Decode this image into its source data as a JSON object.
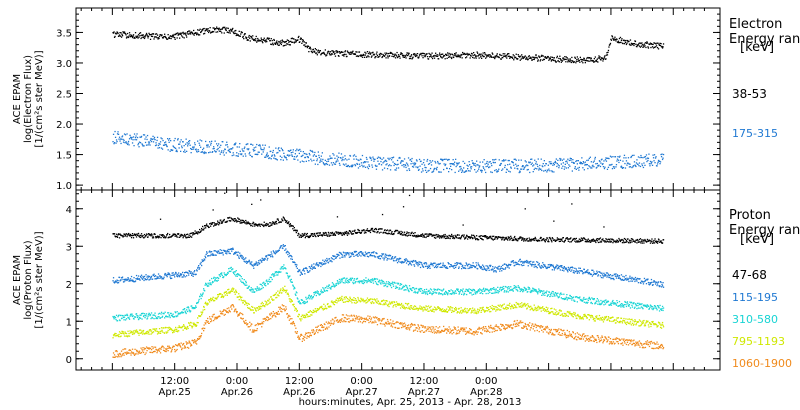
{
  "chart_data": [
    {
      "type": "scatter",
      "panel": "electron",
      "ylabel_lines": [
        "ACE EPAM",
        "log(Electron Flux)",
        "[1/(cm²s ster MeV)]"
      ],
      "yticks": [
        1.0,
        1.5,
        2.0,
        2.5,
        3.0,
        3.5
      ],
      "ylim": [
        0.92,
        3.9
      ],
      "legend_title": [
        "Electron",
        "Energy range",
        "[keV]"
      ],
      "grid": false,
      "series": [
        {
          "name": "38-53",
          "color": "#000000",
          "keypoints": [
            [
              0,
              3.48
            ],
            [
              11,
              3.43
            ],
            [
              19,
              3.55
            ],
            [
              23,
              3.54
            ],
            [
              26,
              3.42
            ],
            [
              33,
              3.33
            ],
            [
              36,
              3.4
            ],
            [
              38,
              3.22
            ],
            [
              40,
              3.18
            ],
            [
              48,
              3.15
            ],
            [
              60,
              3.12
            ],
            [
              70,
              3.14
            ],
            [
              84,
              3.08
            ],
            [
              92,
              3.05
            ],
            [
              95,
              3.1
            ],
            [
              96,
              3.42
            ],
            [
              100,
              3.33
            ],
            [
              106,
              3.28
            ]
          ],
          "noise": 0.05
        },
        {
          "name": "175-315",
          "color": "#1f78d2",
          "keypoints": [
            [
              0,
              1.8
            ],
            [
              10,
              1.68
            ],
            [
              20,
              1.62
            ],
            [
              30,
              1.55
            ],
            [
              40,
              1.45
            ],
            [
              50,
              1.38
            ],
            [
              60,
              1.33
            ],
            [
              72,
              1.32
            ],
            [
              84,
              1.33
            ],
            [
              96,
              1.38
            ],
            [
              106,
              1.42
            ]
          ],
          "noise": 0.11
        }
      ]
    },
    {
      "type": "scatter",
      "panel": "proton",
      "ylabel_lines": [
        "ACE EPAM",
        "log(Proton Flux)",
        "[1/(cm²s ster MeV)]"
      ],
      "yticks": [
        0,
        1,
        2,
        3,
        4
      ],
      "ylim": [
        -0.3,
        4.5
      ],
      "legend_title": [
        "Proton",
        "Energy range",
        "[keV]"
      ],
      "grid": false,
      "series": [
        {
          "name": "47-68",
          "color": "#000000",
          "keypoints": [
            [
              0,
              3.3
            ],
            [
              15,
              3.3
            ],
            [
              18,
              3.55
            ],
            [
              23,
              3.75
            ],
            [
              27,
              3.6
            ],
            [
              30,
              3.6
            ],
            [
              33,
              3.75
            ],
            [
              36,
              3.3
            ],
            [
              44,
              3.35
            ],
            [
              50,
              3.45
            ],
            [
              60,
              3.3
            ],
            [
              70,
              3.25
            ],
            [
              82,
              3.2
            ],
            [
              106,
              3.15
            ]
          ],
          "noise": 0.06
        },
        {
          "name": "115-195",
          "color": "#1f78d2",
          "keypoints": [
            [
              0,
              2.1
            ],
            [
              12,
              2.25
            ],
            [
              16,
              2.3
            ],
            [
              18,
              2.8
            ],
            [
              23,
              2.9
            ],
            [
              27,
              2.5
            ],
            [
              30,
              2.75
            ],
            [
              33,
              3.0
            ],
            [
              36,
              2.3
            ],
            [
              44,
              2.8
            ],
            [
              50,
              2.8
            ],
            [
              60,
              2.5
            ],
            [
              70,
              2.5
            ],
            [
              74,
              2.4
            ],
            [
              78,
              2.6
            ],
            [
              90,
              2.35
            ],
            [
              106,
              2.0
            ]
          ],
          "noise": 0.08
        },
        {
          "name": "310-580",
          "color": "#18d4d4",
          "keypoints": [
            [
              0,
              1.1
            ],
            [
              12,
              1.2
            ],
            [
              16,
              1.4
            ],
            [
              18,
              2.0
            ],
            [
              23,
              2.4
            ],
            [
              27,
              1.8
            ],
            [
              30,
              2.1
            ],
            [
              33,
              2.5
            ],
            [
              36,
              1.5
            ],
            [
              44,
              2.1
            ],
            [
              50,
              2.1
            ],
            [
              60,
              1.8
            ],
            [
              70,
              1.8
            ],
            [
              78,
              1.9
            ],
            [
              90,
              1.6
            ],
            [
              106,
              1.35
            ]
          ],
          "noise": 0.08
        },
        {
          "name": "795-1193",
          "color": "#cfe800",
          "keypoints": [
            [
              0,
              0.65
            ],
            [
              12,
              0.8
            ],
            [
              16,
              0.95
            ],
            [
              18,
              1.5
            ],
            [
              23,
              1.85
            ],
            [
              27,
              1.3
            ],
            [
              30,
              1.55
            ],
            [
              33,
              1.9
            ],
            [
              36,
              1.1
            ],
            [
              44,
              1.6
            ],
            [
              50,
              1.55
            ],
            [
              60,
              1.35
            ],
            [
              70,
              1.3
            ],
            [
              78,
              1.45
            ],
            [
              90,
              1.15
            ],
            [
              106,
              0.9
            ]
          ],
          "noise": 0.08
        },
        {
          "name": "1060-1900",
          "color": "#f08a1c",
          "keypoints": [
            [
              0,
              0.15
            ],
            [
              12,
              0.3
            ],
            [
              16,
              0.45
            ],
            [
              18,
              1.0
            ],
            [
              23,
              1.4
            ],
            [
              27,
              0.8
            ],
            [
              30,
              1.1
            ],
            [
              33,
              1.4
            ],
            [
              36,
              0.55
            ],
            [
              44,
              1.1
            ],
            [
              50,
              1.05
            ],
            [
              60,
              0.8
            ],
            [
              70,
              0.75
            ],
            [
              78,
              0.95
            ],
            [
              90,
              0.6
            ],
            [
              106,
              0.35
            ]
          ],
          "noise": 0.1
        }
      ]
    }
  ],
  "xaxis": {
    "xlim_hours": [
      -7,
      117
    ],
    "data_range_hours": [
      0,
      106
    ],
    "ticks": [
      {
        "hours": 12,
        "time": "12:00",
        "date": "Apr.25"
      },
      {
        "hours": 24,
        "time": "0:00",
        "date": "Apr.26"
      },
      {
        "hours": 36,
        "time": "12:00",
        "date": "Apr.26"
      },
      {
        "hours": 48,
        "time": "0:00",
        "date": "Apr.27"
      },
      {
        "hours": 60,
        "time": "12:00",
        "date": "Apr.27"
      },
      {
        "hours": 72,
        "time": "0:00",
        "date": "Apr.28"
      }
    ],
    "label": "hours:minutes, Apr. 25, 2013 - Apr. 28, 2013"
  }
}
